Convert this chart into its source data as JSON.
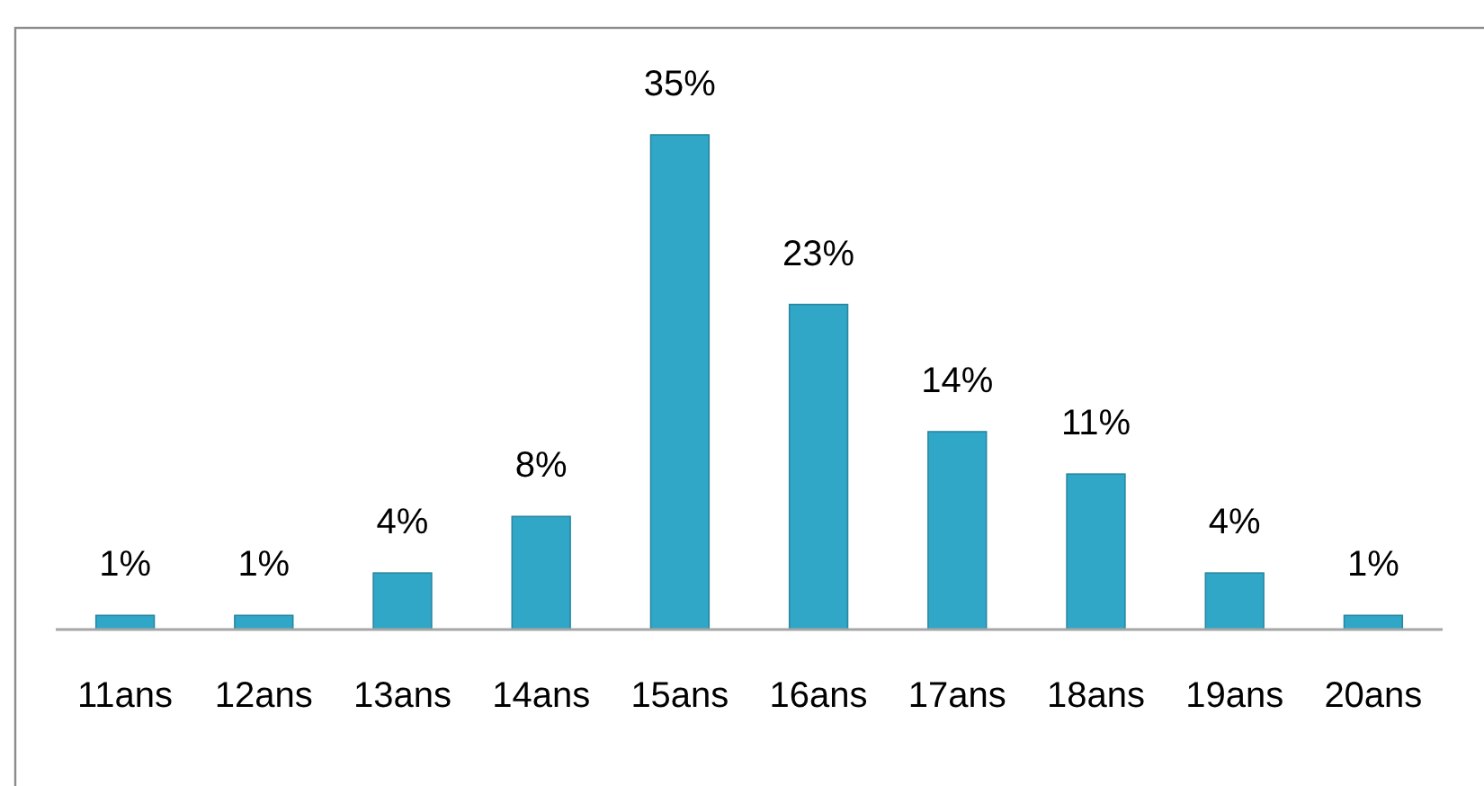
{
  "chart_data": {
    "type": "bar",
    "categories": [
      "11ans",
      "12ans",
      "13ans",
      "14ans",
      "15ans",
      "16ans",
      "17ans",
      "18ans",
      "19ans",
      "20ans"
    ],
    "values": [
      1,
      1,
      4,
      8,
      35,
      23,
      14,
      11,
      4,
      1
    ],
    "value_labels": [
      "1%",
      "1%",
      "4%",
      "8%",
      "35%",
      "23%",
      "14%",
      "11%",
      "4%",
      "1%"
    ],
    "color": "#31a7c7",
    "tick_labels": "x"
  }
}
